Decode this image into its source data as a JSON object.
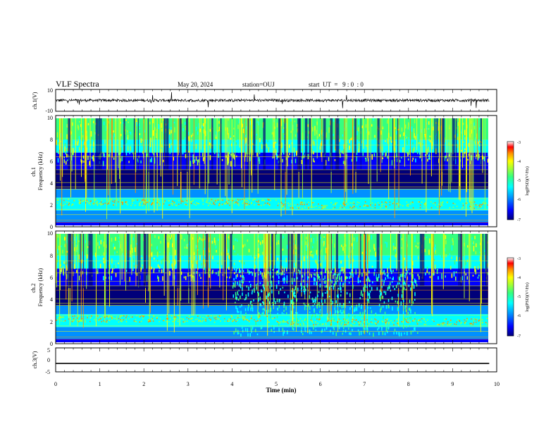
{
  "header": {
    "title": "VLF Spectra",
    "date": "May 20, 2024",
    "station": "station=OUJ",
    "start": "start  UT  =   9 : 0  : 0"
  },
  "colors": {
    "axis": "#000000",
    "trace": "#000000",
    "colormap": [
      "#00007a",
      "#0000ff",
      "#0090ff",
      "#00ffff",
      "#35ff7f",
      "#aaff30",
      "#ffff00",
      "#ff9000",
      "#ff0000",
      "#ffffff"
    ]
  },
  "chart_data": [
    {
      "type": "line",
      "ylabel": "ch.1(V)",
      "ylim": [
        -10,
        10
      ],
      "yticks": [
        "10",
        "-10"
      ],
      "xlim": [
        0,
        10
      ],
      "series": [
        {
          "x": [
            0,
            10
          ],
          "y": [
            0,
            0
          ],
          "noise_amplitude": 1.2
        }
      ]
    },
    {
      "type": "heatmap",
      "ylabel": "ch.1\nFrequency (kHz)",
      "ylim": [
        0,
        10
      ],
      "yticks": [
        "0",
        "2",
        "4",
        "6",
        "8",
        "10"
      ],
      "xlim": [
        0,
        10
      ],
      "colorbar": {
        "label": "log(PSD)(V²/Hz)",
        "range": [
          -7,
          -3
        ],
        "ticks": [
          "-3",
          "-4",
          "-5",
          "-6",
          "-7"
        ]
      }
    },
    {
      "type": "heatmap",
      "ylabel": "ch.2\nFrequency (kHz)",
      "ylim": [
        0,
        10
      ],
      "yticks": [
        "0",
        "2",
        "4",
        "6",
        "8",
        "10"
      ],
      "xlim": [
        0,
        10
      ],
      "colorbar": {
        "label": "log(PSD)(V²/Hz)",
        "range": [
          -7,
          -3
        ],
        "ticks": [
          "-3",
          "-4",
          "-5",
          "-6",
          "-7"
        ]
      }
    },
    {
      "type": "line",
      "ylabel": "ch.3(V)",
      "ylim": [
        -5,
        5
      ],
      "yticks": [
        "5",
        "0",
        "-5"
      ],
      "xlim": [
        0,
        10
      ],
      "series": [
        {
          "x": [
            0,
            10
          ],
          "y": [
            -1.5,
            -1.5
          ]
        }
      ]
    }
  ],
  "xaxis": {
    "label": "Time (min)",
    "ticks": [
      "0",
      "1",
      "2",
      "3",
      "4",
      "5",
      "6",
      "7",
      "8",
      "9",
      "10"
    ],
    "data_end": 9.83
  }
}
